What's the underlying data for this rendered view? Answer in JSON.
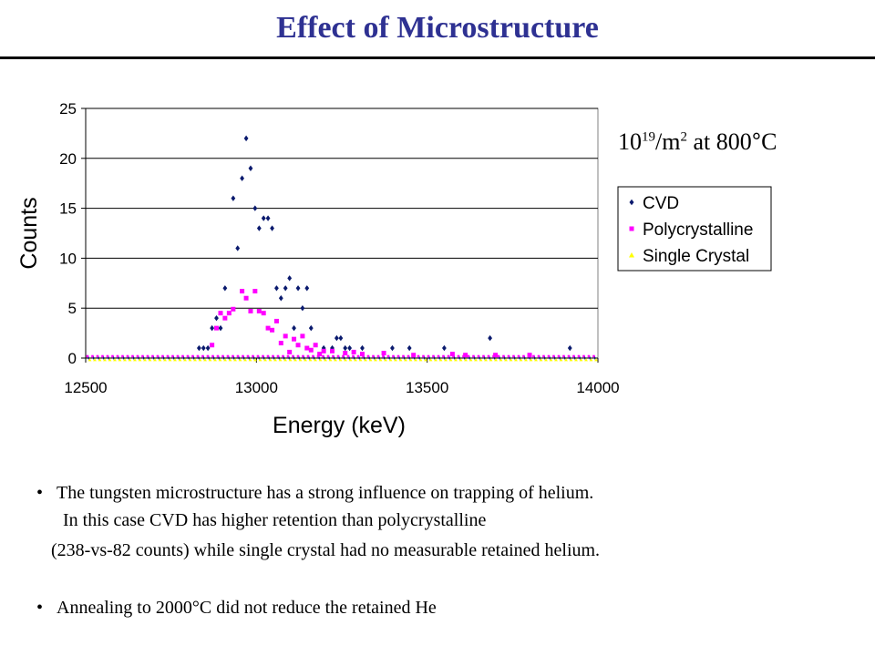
{
  "slide": {
    "title": "Effect of Microstructure",
    "conditions": {
      "base": "10",
      "exponent": "19",
      "unit": "/m",
      "unit_power": "2",
      "at_text": " at 800",
      "degree": "°",
      "temp_unit": "C"
    },
    "bullets": [
      {
        "bullet_char": "•",
        "lines": [
          "The tungsten microstructure has a strong influence on trapping of helium.",
          "In this case CVD has higher retention than polycrystalline",
          "(238-vs-82   counts) while single crystal had no measurable retained helium."
        ]
      },
      {
        "bullet_char": "•",
        "lines": [
          "Annealing to 2000°C did not reduce the retained He"
        ]
      }
    ]
  },
  "chart_data": {
    "type": "scatter",
    "xlabel": "Energy (keV)",
    "ylabel": "Counts",
    "xlim": [
      12500,
      14000
    ],
    "ylim": [
      0,
      25
    ],
    "xticks": [
      12500,
      13000,
      13500,
      14000
    ],
    "yticks": [
      0,
      5,
      10,
      15,
      20,
      25
    ],
    "grid": "horizontal",
    "legend_position": "right",
    "series": [
      {
        "name": "CVD",
        "color": "#0a1a6e",
        "marker": "diamond",
        "points": [
          [
            12832,
            1
          ],
          [
            12845,
            1
          ],
          [
            12858,
            1
          ],
          [
            12870,
            3
          ],
          [
            12883,
            4
          ],
          [
            12895,
            3
          ],
          [
            12908,
            7
          ],
          [
            12932,
            16
          ],
          [
            12945,
            11
          ],
          [
            12958,
            18
          ],
          [
            12970,
            22
          ],
          [
            12983,
            19
          ],
          [
            12996,
            15
          ],
          [
            13008,
            13
          ],
          [
            13021,
            14
          ],
          [
            13034,
            14
          ],
          [
            13046,
            13
          ],
          [
            13059,
            7
          ],
          [
            13072,
            6
          ],
          [
            13085,
            7
          ],
          [
            13097,
            8
          ],
          [
            13110,
            3
          ],
          [
            13122,
            7
          ],
          [
            13135,
            5
          ],
          [
            13148,
            7
          ],
          [
            13160,
            3
          ],
          [
            13197,
            1
          ],
          [
            13222,
            1
          ],
          [
            13235,
            2
          ],
          [
            13247,
            2
          ],
          [
            13260,
            1
          ],
          [
            13273,
            1
          ],
          [
            13310,
            1
          ],
          [
            13398,
            1
          ],
          [
            13448,
            1
          ],
          [
            13550,
            1
          ],
          [
            13684,
            2
          ],
          [
            13918,
            1
          ]
        ]
      },
      {
        "name": "Polycrystalline",
        "color": "#ff00ff",
        "marker": "square",
        "points": [
          [
            12870,
            1.3
          ],
          [
            12883,
            3
          ],
          [
            12895,
            4.5
          ],
          [
            12908,
            4
          ],
          [
            12920,
            4.5
          ],
          [
            12932,
            4.9
          ],
          [
            12958,
            6.7
          ],
          [
            12970,
            6
          ],
          [
            12983,
            4.7
          ],
          [
            12996,
            6.7
          ],
          [
            13008,
            4.7
          ],
          [
            13021,
            4.5
          ],
          [
            13034,
            3
          ],
          [
            13046,
            2.8
          ],
          [
            13059,
            3.7
          ],
          [
            13072,
            1.5
          ],
          [
            13085,
            2.2
          ],
          [
            13097,
            0.6
          ],
          [
            13110,
            1.9
          ],
          [
            13122,
            1.3
          ],
          [
            13135,
            2.2
          ],
          [
            13148,
            1
          ],
          [
            13160,
            0.8
          ],
          [
            13173,
            1.3
          ],
          [
            13185,
            0.4
          ],
          [
            13197,
            0.7
          ],
          [
            13222,
            0.7
          ],
          [
            13260,
            0.5
          ],
          [
            13285,
            0.6
          ],
          [
            13310,
            0.4
          ],
          [
            13373,
            0.5
          ],
          [
            13460,
            0.3
          ],
          [
            13574,
            0.4
          ],
          [
            13612,
            0.3
          ],
          [
            13700,
            0.3
          ],
          [
            13800,
            0.3
          ]
        ]
      },
      {
        "name": "Single Crystal",
        "color": "#ffff00",
        "marker": "triangle",
        "points": []
      }
    ]
  }
}
